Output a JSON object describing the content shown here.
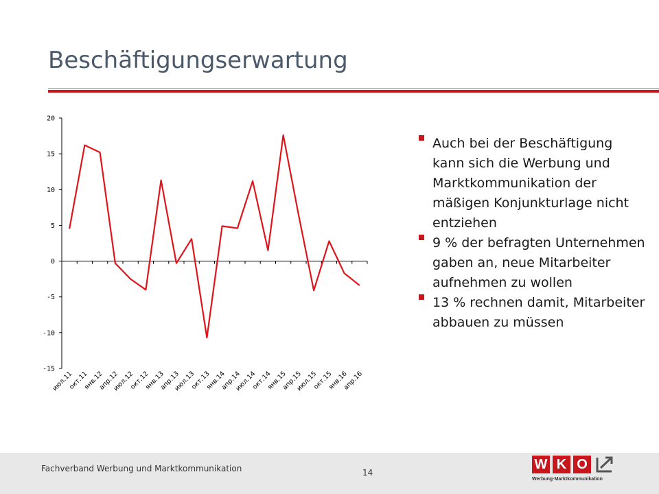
{
  "slide": {
    "title": "Beschäftigungserwartung",
    "bullets": [
      "Auch bei der Beschäftigung kann sich die Werbung und Marktkommunikation der mäßigen Konjunkturlage nicht entziehen",
      "9 % der befragten Unternehmen gaben an, neue Mitarbeiter aufnehmen zu wollen",
      "13 % rechnen damit, Mitarbeiter abbauen zu müssen"
    ]
  },
  "footer": {
    "text": "Fachverband Werbung und Marktkommunikation",
    "page_number": "14",
    "logo_letters": [
      "W",
      "K",
      "O"
    ],
    "logo_subtext": "Werbung·Marktkommunikation"
  },
  "colors": {
    "accent": "#c8161d",
    "title": "#4b5a6b",
    "line": "#e0141b"
  },
  "chart_data": {
    "type": "line",
    "categories": [
      "июл.11",
      "окт.11",
      "янв.12",
      "апр.12",
      "июл.12",
      "окт.12",
      "янв.13",
      "апр.13",
      "июл.13",
      "окт.13",
      "янв.14",
      "апр.14",
      "июл.14",
      "окт.14",
      "янв.15",
      "апр.15",
      "июл.15",
      "окт.15",
      "янв.16",
      "апр.16"
    ],
    "series": [
      {
        "values": [
          4.5,
          16.2,
          15.2,
          -0.3,
          -2.5,
          -4.0,
          11.3,
          -0.3,
          3.1,
          -10.7,
          4.9,
          4.6,
          11.2,
          1.5,
          17.6,
          6.5,
          -4.1,
          2.8,
          -1.7,
          -3.4
        ]
      }
    ],
    "yticks": [
      20,
      15,
      10,
      5,
      0,
      -5,
      -10,
      -15
    ],
    "ylim": [
      -15,
      20
    ],
    "grid": false,
    "legend": "none"
  }
}
